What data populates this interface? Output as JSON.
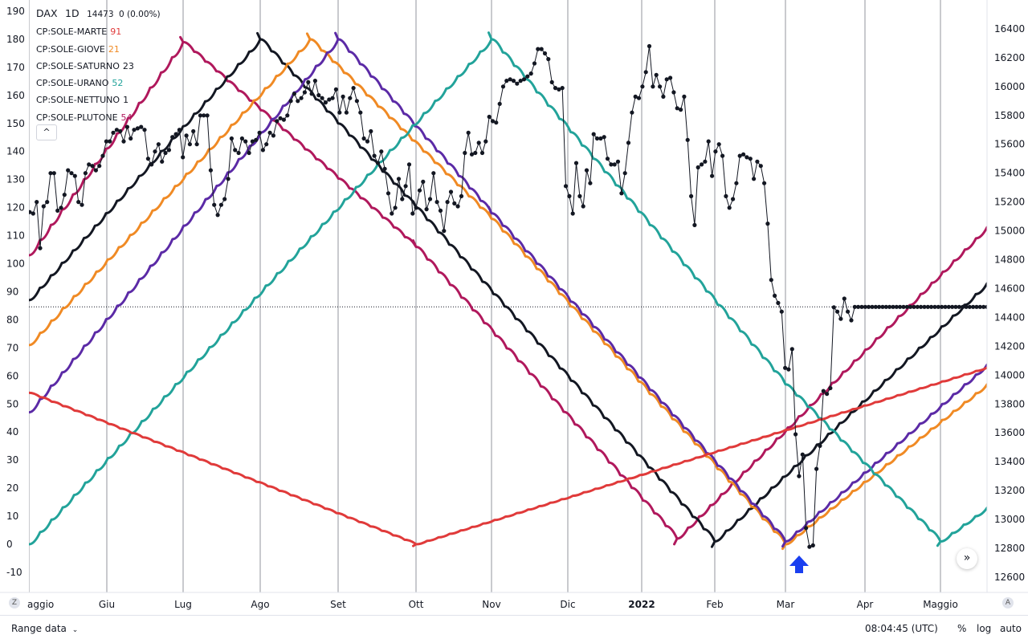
{
  "legend": {
    "symbol": "DAX",
    "interval": "1D",
    "last": "14473",
    "change": "0 (0.00%)",
    "indicators": [
      {
        "name": "CP:SOLE-MARTE",
        "value": "91",
        "color": "#e03a3a"
      },
      {
        "name": "CP:SOLE-GIOVE",
        "value": "21",
        "color": "#f08a24"
      },
      {
        "name": "CP:SOLE-SATURNO",
        "value": "23",
        "color": "#131722"
      },
      {
        "name": "CP:SOLE-URANO",
        "value": "52",
        "color": "#22a39a"
      },
      {
        "name": "CP:SOLE-NETTUNO",
        "value": "1",
        "color": "#131722"
      },
      {
        "name": "CP:SOLE-PLUTONE",
        "value": "54",
        "color": "#b0185c"
      }
    ],
    "collapse_glyph": "^"
  },
  "chart_data": {
    "type": "line",
    "x_ticks": [
      "aggio",
      "Giu",
      "Lug",
      "Ago",
      "Set",
      "Ott",
      "Nov",
      "Dic",
      "2022",
      "Feb",
      "Mar",
      "Apr",
      "Maggio"
    ],
    "left_axis": {
      "ticks": [
        190,
        180,
        170,
        160,
        150,
        140,
        130,
        120,
        110,
        100,
        90,
        80,
        70,
        60,
        50,
        40,
        30,
        20,
        10,
        0,
        -10
      ],
      "range": [
        -10,
        190
      ]
    },
    "right_axis": {
      "ticks": [
        16400,
        16200,
        16000,
        15800,
        15600,
        15400,
        15200,
        15000,
        14800,
        14600,
        14400,
        14200,
        14000,
        13800,
        13600,
        13400,
        13200,
        13000,
        12800,
        12600
      ],
      "range": [
        12600,
        16400
      ]
    },
    "reference_line": {
      "value": 14473
    },
    "cycle_series": [
      {
        "color": "#b0185c",
        "points": [
          [
            "aggio",
            103
          ],
          [
            "Lug",
            179
          ],
          [
            "Ott",
            106
          ],
          [
            "Gen_end",
            2
          ],
          [
            "Maggio_end",
            113
          ]
        ]
      },
      {
        "color": "#131722",
        "points": [
          [
            "aggio",
            87
          ],
          [
            "Ago",
            180
          ],
          [
            "Ott",
            120
          ],
          [
            "Feb",
            1
          ],
          [
            "Maggio_end",
            93
          ]
        ]
      },
      {
        "color": "#f08a24",
        "points": [
          [
            "aggio",
            71
          ],
          [
            "Ago_end",
            180
          ],
          [
            "Nov",
            116
          ],
          [
            "Mar",
            0
          ],
          [
            "Maggio_end",
            57
          ]
        ]
      },
      {
        "color": "#5b2aa6",
        "points": [
          [
            "aggio",
            47
          ],
          [
            "Set",
            180
          ],
          [
            "Nov",
            118
          ],
          [
            "Mar",
            1
          ],
          [
            "Maggio_end",
            64
          ]
        ]
      },
      {
        "color": "#22a39a",
        "points": [
          [
            "aggio",
            0
          ],
          [
            "Nov",
            180
          ],
          [
            "Mar",
            57
          ],
          [
            "Maggio",
            1
          ],
          [
            "Maggio_end",
            13
          ]
        ]
      },
      {
        "color": "#e03a3a",
        "points": [
          [
            "aggio",
            54
          ],
          [
            "Ott",
            0
          ],
          [
            "Maggio_end",
            63
          ]
        ]
      }
    ],
    "price_series": {
      "color": "#131722",
      "values": [
        15130,
        15120,
        15200,
        14880,
        15170,
        15200,
        15400,
        15400,
        15140,
        15160,
        15250,
        15420,
        15400,
        15380,
        15200,
        15180,
        15400,
        15460,
        15450,
        15420,
        15450,
        15520,
        15620,
        15620,
        15680,
        15700,
        15690,
        15620,
        15720,
        15640,
        15700,
        15710,
        15720,
        15700,
        15500,
        15460,
        15550,
        15600,
        15480,
        15540,
        15560,
        15650,
        15670,
        15700,
        15510,
        15660,
        15600,
        15690,
        15600,
        15800,
        15800,
        15800,
        15420,
        15180,
        15110,
        15180,
        15220,
        15360,
        15640,
        15560,
        15540,
        15640,
        15620,
        15540,
        15620,
        15630,
        15680,
        15560,
        15600,
        15680,
        15660,
        15760,
        15780,
        15770,
        15800,
        15900,
        15950,
        15900,
        15920,
        15960,
        16030,
        15950,
        16040,
        15940,
        15920,
        15890,
        15910,
        15920,
        15980,
        15820,
        15930,
        15820,
        15920,
        15990,
        15900,
        15820,
        15640,
        15620,
        15690,
        15520,
        15470,
        15550,
        15430,
        15260,
        15120,
        15160,
        15360,
        15220,
        15310,
        15460,
        15120,
        15160,
        15280,
        15340,
        15150,
        15220,
        15400,
        15200,
        15140,
        15000,
        15200,
        15270,
        15190,
        15170,
        15240,
        15540,
        15680,
        15530,
        15540,
        15610,
        15540,
        15620,
        15790,
        15760,
        15750,
        15880,
        16000,
        16040,
        16050,
        16040,
        16020,
        16040,
        16050,
        16070,
        16090,
        16160,
        16260,
        16260,
        16230,
        16190,
        16030,
        15990,
        15980,
        15990,
        15310,
        15240,
        15120,
        15470,
        15240,
        15170,
        15420,
        15330,
        15670,
        15640,
        15640,
        15650,
        15500,
        15460,
        15460,
        15480,
        15260,
        15400,
        15610,
        15820,
        15930,
        15920,
        16000,
        16100,
        16280,
        16000,
        16080,
        16000,
        15930,
        16050,
        16060,
        15960,
        15850,
        15840,
        15930,
        15630,
        15240,
        15040,
        15440,
        15460,
        15480,
        15620,
        15380,
        15550,
        15600,
        15520,
        15240,
        15160,
        15220,
        15330,
        15520,
        15530,
        15510,
        15500,
        15360,
        15480,
        15450,
        15330,
        15050,
        14660,
        14550,
        14500,
        14440,
        14050,
        14040,
        14180,
        13590,
        13300,
        13450,
        12940,
        12810,
        12820,
        13350,
        13510,
        13890,
        13870,
        13910,
        14470,
        14440,
        14390,
        14530,
        14440,
        14380,
        14473,
        14473,
        14473,
        14473,
        14473,
        14473,
        14473,
        14473,
        14473,
        14473,
        14473,
        14473,
        14473,
        14473,
        14473,
        14473,
        14473,
        14473,
        14473,
        14473,
        14473,
        14473,
        14473,
        14473,
        14473,
        14473,
        14473,
        14473,
        14473,
        14473,
        14473,
        14473,
        14473,
        14473,
        14473,
        14473,
        14473,
        14473,
        14473
      ]
    },
    "annotation": {
      "type": "arrow-up",
      "color": "#1a3ff0"
    }
  },
  "bottom_bar": {
    "range_label": "Range data",
    "time": "08:04:45 (UTC)",
    "percent_label": "%",
    "log_label": "log",
    "auto_label": "auto"
  },
  "corner_left": "Z",
  "corner_right": "A",
  "scroll_glyph": "»"
}
